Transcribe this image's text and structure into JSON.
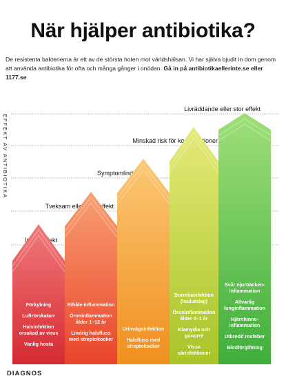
{
  "title": "När hjälper antibiotika?",
  "intro": {
    "text": "De resistenta bakterierna är ett av de största hoten mot världshälsan. Vi har själva bjudit in dom genom att använda antibiotika för ofta och många gånger i onödan. ",
    "bold": "Gå in på antibiotikaellerinte.se eller 1177.se"
  },
  "axis_label": "EFFEKT AV ANTIBIOTIKA",
  "levels": [
    "Ingen effekt",
    "Tveksam eller liten effekt",
    "Symptomlindrande",
    "Minskad risk för komplikationer",
    "Livräddande eller stor effekt"
  ],
  "columns": [
    {
      "color_top": "#f07a7a",
      "color_bottom": "#d52a33",
      "items": [
        "Förkylning",
        "Luftrörskatarr",
        "Halsinfektion orsakad av virus",
        "Vanlig hosta"
      ]
    },
    {
      "color_top": "#f8a070",
      "color_bottom": "#e9432b",
      "items": [
        "Bihåle-inflammation",
        "Öroninflammation ålder 1–12 år",
        "Lindrig halsfluss med streptokocker"
      ]
    },
    {
      "color_top": "#fcc774",
      "color_bottom": "#f08f20",
      "items": [
        "Urinvägsinfektion",
        "Halsfluss med streptokocker"
      ]
    },
    {
      "color_top": "#e5ea78",
      "color_bottom": "#a8c428",
      "items": [
        "Borreliainfektion (hudutslag)",
        "Öroninflammation ålder 0–1 år",
        "Klamydia och gonorré",
        "Vissa sårinfektioner"
      ]
    },
    {
      "color_top": "#9fdf78",
      "color_bottom": "#3fae3c",
      "items": [
        "Svår njurbäcken-inflammation",
        "Allvarlig lunginflammation",
        "Hjärnhinne-inflammation",
        "Utbredd rosfeber",
        "Blodförgiftning"
      ]
    }
  ],
  "footer": "DIAGNOS"
}
